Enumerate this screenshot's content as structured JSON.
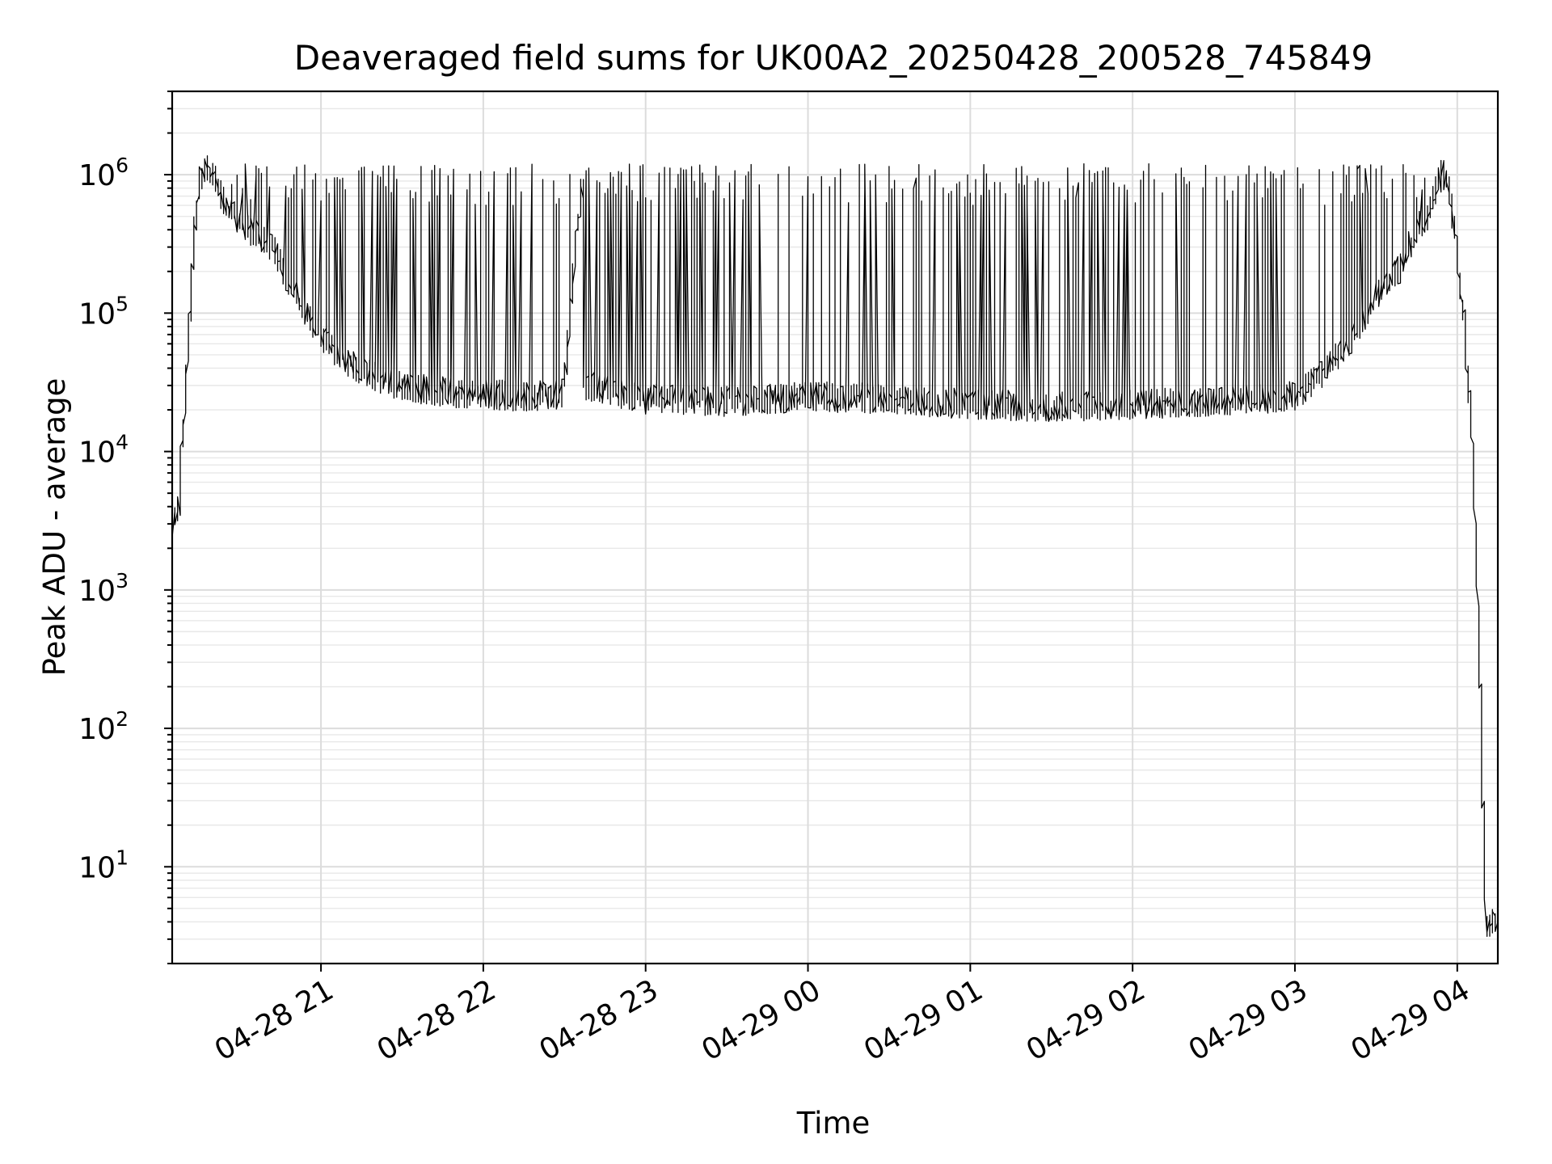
{
  "chart_data": {
    "type": "line",
    "title": "Deaveraged field sums for UK00A2_20250428_200528_745849",
    "xlabel": "Time",
    "ylabel": "Peak ADU - average",
    "xscale": "time",
    "yscale": "log",
    "xlim": [
      "2025-04-28 20:05",
      "2025-04-29 04:15"
    ],
    "ylim": [
      2,
      4000000
    ],
    "grid": true,
    "line_color": "#000000",
    "x_ticks": [
      {
        "value": "2025-04-28 21:00",
        "label": "04-28 21"
      },
      {
        "value": "2025-04-28 22:00",
        "label": "04-28 22"
      },
      {
        "value": "2025-04-28 23:00",
        "label": "04-28 23"
      },
      {
        "value": "2025-04-29 00:00",
        "label": "04-29 00"
      },
      {
        "value": "2025-04-29 01:00",
        "label": "04-29 01"
      },
      {
        "value": "2025-04-29 02:00",
        "label": "04-29 02"
      },
      {
        "value": "2025-04-29 03:00",
        "label": "04-29 03"
      },
      {
        "value": "2025-04-29 04:00",
        "label": "04-29 04"
      }
    ],
    "y_ticks": [
      {
        "value": 10,
        "base": "10",
        "exp": "1"
      },
      {
        "value": 100,
        "base": "10",
        "exp": "2"
      },
      {
        "value": 1000,
        "base": "10",
        "exp": "3"
      },
      {
        "value": 10000,
        "base": "10",
        "exp": "4"
      },
      {
        "value": 100000,
        "base": "10",
        "exp": "5"
      },
      {
        "value": 1000000,
        "base": "10",
        "exp": "6"
      }
    ],
    "series": [
      {
        "points": [
          [
            "2025-04-28 20:05",
            1500
          ],
          [
            "2025-04-28 20:06",
            3000
          ],
          [
            "2025-04-28 20:08",
            4000
          ],
          [
            "2025-04-28 20:10",
            20000
          ],
          [
            "2025-04-28 20:12",
            90000
          ],
          [
            "2025-04-28 20:14",
            500000
          ],
          [
            "2025-04-28 20:16",
            1000000
          ],
          [
            "2025-04-28 20:20",
            1100000
          ],
          [
            "2025-04-28 20:25",
            600000
          ],
          [
            "2025-04-28 20:30",
            450000
          ],
          [
            "2025-04-28 20:35",
            380000
          ],
          [
            "2025-04-28 20:40",
            350000
          ],
          [
            "2025-04-28 20:45",
            250000
          ],
          [
            "2025-04-28 20:50",
            150000
          ],
          [
            "2025-04-28 20:55",
            100000
          ],
          [
            "2025-04-28 21:00",
            70000
          ],
          [
            "2025-04-28 21:10",
            45000
          ],
          [
            "2025-04-28 21:20",
            35000
          ],
          [
            "2025-04-28 21:30",
            30000
          ],
          [
            "2025-04-28 21:45",
            27000
          ],
          [
            "2025-04-28 22:00",
            26000
          ],
          [
            "2025-04-28 22:15",
            25000
          ],
          [
            "2025-04-28 22:30",
            26000
          ],
          [
            "2025-04-28 22:37",
            1000000
          ],
          [
            "2025-04-28 22:38",
            30000
          ],
          [
            "2025-04-28 23:00",
            24000
          ],
          [
            "2025-04-28 23:30",
            23000
          ],
          [
            "2025-04-29 00:00",
            25000
          ],
          [
            "2025-04-29 00:30",
            24000
          ],
          [
            "2025-04-29 01:00",
            22000
          ],
          [
            "2025-04-29 01:30",
            21000
          ],
          [
            "2025-04-29 02:00",
            22000
          ],
          [
            "2025-04-29 02:30",
            23000
          ],
          [
            "2025-04-29 03:00",
            25000
          ],
          [
            "2025-04-29 03:10",
            35000
          ],
          [
            "2025-04-29 03:20",
            60000
          ],
          [
            "2025-04-29 03:30",
            130000
          ],
          [
            "2025-04-29 03:40",
            220000
          ],
          [
            "2025-04-29 03:45",
            400000
          ],
          [
            "2025-04-29 03:50",
            500000
          ],
          [
            "2025-04-29 03:55",
            1100000
          ],
          [
            "2025-04-29 03:58",
            700000
          ],
          [
            "2025-04-29 04:00",
            300000
          ],
          [
            "2025-04-29 04:03",
            90000
          ],
          [
            "2025-04-29 04:06",
            12000
          ],
          [
            "2025-04-29 04:09",
            200
          ],
          [
            "2025-04-29 04:11",
            4
          ],
          [
            "2025-04-29 04:15",
            4
          ]
        ]
      }
    ]
  }
}
